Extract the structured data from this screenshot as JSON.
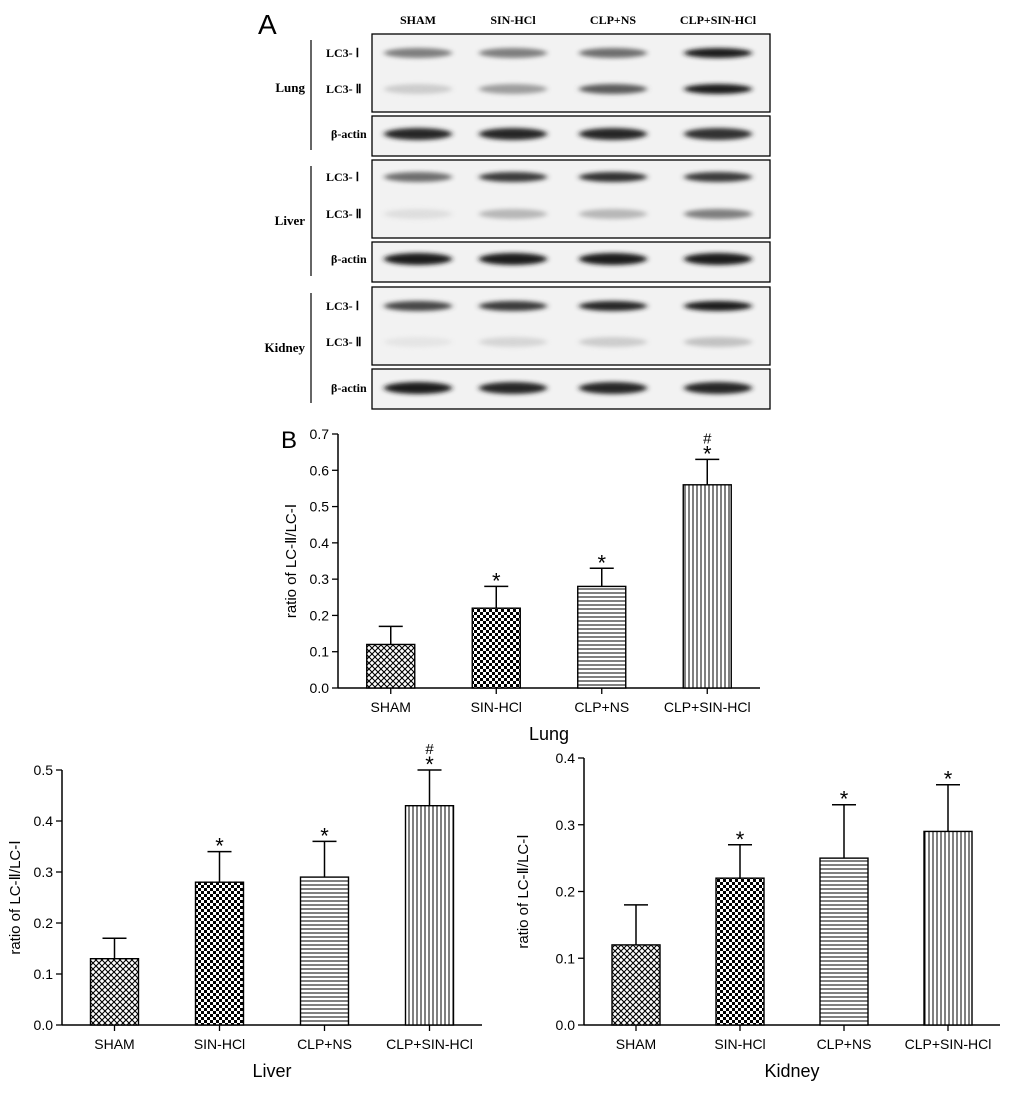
{
  "panel_a": {
    "letter": "A",
    "lanes": [
      "SHAM",
      "SIN-HCl",
      "CLP+NS",
      "CLP+SIN-HCl"
    ],
    "tissues": [
      {
        "name": "Lung",
        "lc3_labels": [
          "LC3- Ⅰ",
          "LC3- Ⅱ"
        ],
        "actin_label": "β-actin",
        "lc3_i_intensity": [
          0.55,
          0.55,
          0.6,
          0.95
        ],
        "lc3_ii_intensity": [
          0.25,
          0.45,
          0.65,
          0.95
        ],
        "actin_intensity": [
          0.9,
          0.9,
          0.9,
          0.85
        ]
      },
      {
        "name": "Liver",
        "lc3_labels": [
          "LC3- Ⅰ",
          "LC3- Ⅱ"
        ],
        "actin_label": "β-actin",
        "lc3_i_intensity": [
          0.6,
          0.8,
          0.85,
          0.8
        ],
        "lc3_ii_intensity": [
          0.15,
          0.35,
          0.35,
          0.55
        ],
        "actin_intensity": [
          0.95,
          0.95,
          0.95,
          0.95
        ]
      },
      {
        "name": "Kidney",
        "lc3_labels": [
          "LC3- Ⅰ",
          "LC3- Ⅱ"
        ],
        "actin_label": "β-actin",
        "lc3_i_intensity": [
          0.75,
          0.8,
          0.9,
          0.95
        ],
        "lc3_ii_intensity": [
          0.1,
          0.2,
          0.25,
          0.3
        ],
        "actin_intensity": [
          0.95,
          0.9,
          0.9,
          0.9
        ]
      }
    ]
  },
  "chart_data": [
    {
      "type": "bar",
      "panel_letter": "B",
      "title": "",
      "xlabel": "Lung",
      "ylabel": "ratio of LC-Ⅱ/LC-Ⅰ",
      "categories": [
        "SHAM",
        "SIN-HCl",
        "CLP+NS",
        "CLP+SIN-HCl"
      ],
      "values": [
        0.12,
        0.22,
        0.28,
        0.56
      ],
      "errors": [
        0.05,
        0.06,
        0.05,
        0.07
      ],
      "annotations": [
        "",
        "*",
        "*",
        "#\n*"
      ],
      "ylim": [
        0,
        0.7
      ],
      "yticks": [
        "0.0",
        "0.1",
        "0.2",
        "0.3",
        "0.4",
        "0.5",
        "0.6",
        "0.7"
      ],
      "patterns": [
        "diamond",
        "checker",
        "hlines",
        "vlines"
      ],
      "grid": false
    },
    {
      "type": "bar",
      "title": "",
      "xlabel": "Liver",
      "ylabel": "ratio of LC-Ⅱ/LC-Ⅰ",
      "categories": [
        "SHAM",
        "SIN-HCl",
        "CLP+NS",
        "CLP+SIN-HCl"
      ],
      "values": [
        0.13,
        0.28,
        0.29,
        0.43
      ],
      "errors": [
        0.04,
        0.06,
        0.07,
        0.07
      ],
      "annotations": [
        "",
        "*",
        "*",
        "#\n*"
      ],
      "ylim": [
        0,
        0.5
      ],
      "yticks": [
        "0.0",
        "0.1",
        "0.2",
        "0.3",
        "0.4",
        "0.5"
      ],
      "patterns": [
        "diamond",
        "checker",
        "hlines",
        "vlines"
      ],
      "grid": false
    },
    {
      "type": "bar",
      "title": "",
      "xlabel": "Kidney",
      "ylabel": "ratio of LC-Ⅱ/LC-Ⅰ",
      "categories": [
        "SHAM",
        "SIN-HCl",
        "CLP+NS",
        "CLP+SIN-HCl"
      ],
      "values": [
        0.12,
        0.22,
        0.25,
        0.29
      ],
      "errors": [
        0.06,
        0.05,
        0.08,
        0.07
      ],
      "annotations": [
        "",
        "*",
        "*",
        "*"
      ],
      "ylim": [
        0,
        0.4
      ],
      "yticks": [
        "0.0",
        "0.1",
        "0.2",
        "0.3",
        "0.4"
      ],
      "patterns": [
        "diamond",
        "checker",
        "hlines",
        "vlines"
      ],
      "grid": false
    }
  ]
}
